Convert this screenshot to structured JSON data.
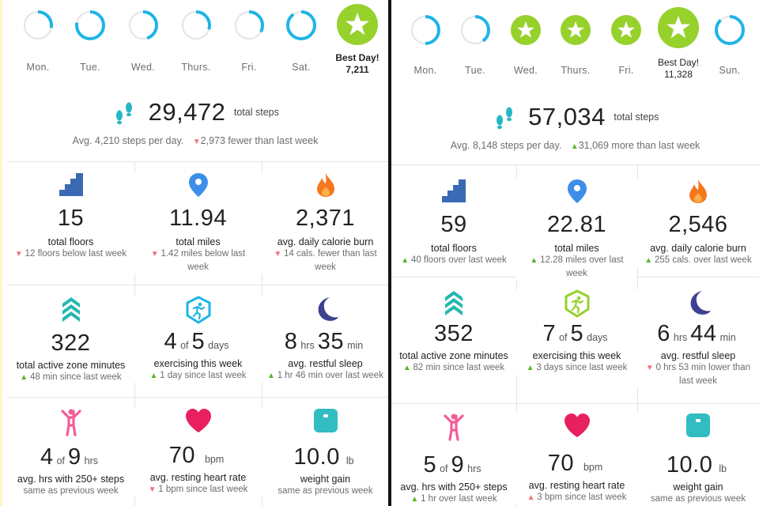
{
  "left": {
    "days": [
      {
        "label": "Mon.",
        "progress": 0.28
      },
      {
        "label": "Tue.",
        "progress": 0.78
      },
      {
        "label": "Wed.",
        "progress": 0.45
      },
      {
        "label": "Thurs.",
        "progress": 0.3
      },
      {
        "label": "Fri.",
        "progress": 0.33
      },
      {
        "label": "Sat.",
        "progress": 0.9
      }
    ],
    "best_day": {
      "label": "Best Day!",
      "steps": "7,211"
    },
    "total_steps": "29,472",
    "total_steps_unit": "total steps",
    "avg_steps": "Avg. 4,210 steps per day.",
    "steps_change": "2,973 fewer than last week",
    "steps_trend": "down",
    "tiles": [
      {
        "icon": "stairs-icon",
        "value": "15",
        "label": "total floors",
        "change": "12 floors below last week",
        "trend": "down"
      },
      {
        "icon": "location-pin-icon",
        "value": "11.94",
        "label": "total miles",
        "change": "1.42 miles below last week",
        "trend": "down"
      },
      {
        "icon": "flame-icon",
        "value": "2,371",
        "label": "avg. daily calorie burn",
        "change": "14 cals. fewer than last week",
        "trend": "down"
      },
      {
        "icon": "active-zone-icon",
        "value": "322",
        "label": "total active zone minutes",
        "change": "48 min since last week",
        "trend": "up"
      },
      {
        "icon": "exercise-badge-icon",
        "value_a": "4",
        "of": "of",
        "value_b": "5",
        "unit": "days",
        "label": "exercising this week",
        "change": "1 day since last week",
        "trend": "up"
      },
      {
        "icon": "moon-icon",
        "value_a": "8",
        "unit_a": "hrs",
        "value_b": "35",
        "unit_b": "min",
        "label": "avg. restful sleep",
        "change": "1 hr 46 min over last week",
        "trend": "up"
      },
      {
        "icon": "standing-person-icon",
        "value_a": "4",
        "of": "of",
        "value_b": "9",
        "unit": "hrs",
        "label": "avg. hrs with 250+ steps",
        "change": "same as previous week",
        "trend": "none"
      },
      {
        "icon": "heart-icon",
        "value": "70",
        "unit": "bpm",
        "label": "avg. resting heart rate",
        "change": "1 bpm since last week",
        "trend": "down"
      },
      {
        "icon": "scale-icon",
        "value": "10.0",
        "unit": "lb",
        "label": "weight gain",
        "change": "same as previous week",
        "trend": "none"
      }
    ]
  },
  "right": {
    "days": [
      {
        "label": "Mon.",
        "type": "ring",
        "progress": 0.5
      },
      {
        "label": "Tue.",
        "type": "ring",
        "progress": 0.4
      },
      {
        "label": "Wed.",
        "type": "star"
      },
      {
        "label": "Thurs.",
        "type": "star"
      },
      {
        "label": "Fri.",
        "type": "star"
      },
      {
        "label": "Sun.",
        "type": "ring",
        "progress": 0.88
      }
    ],
    "best_day": {
      "label": "Best Day!",
      "steps": "11,328"
    },
    "total_steps": "57,034",
    "total_steps_unit": "total steps",
    "avg_steps": "Avg. 8,148 steps per day.",
    "steps_change": "31,069 more than last week",
    "steps_trend": "up",
    "tiles": [
      {
        "icon": "stairs-icon",
        "value": "59",
        "label": "total floors",
        "change": "40 floors over last week",
        "trend": "up"
      },
      {
        "icon": "location-pin-icon",
        "value": "22.81",
        "label": "total miles",
        "change": "12.28 miles over last week",
        "trend": "up"
      },
      {
        "icon": "flame-icon",
        "value": "2,546",
        "label": "avg. daily calorie burn",
        "change": "255 cals. over last week",
        "trend": "up"
      },
      {
        "icon": "active-zone-icon",
        "value": "352",
        "label": "total active zone minutes",
        "change": "82 min since last week",
        "trend": "up"
      },
      {
        "icon": "exercise-badge-icon",
        "value_a": "7",
        "of": "of",
        "value_b": "5",
        "unit": "days",
        "label": "exercising this week",
        "change": "3 days since last week",
        "trend": "up"
      },
      {
        "icon": "moon-icon",
        "value_a": "6",
        "unit_a": "hrs",
        "value_b": "44",
        "unit_b": "min",
        "label": "avg. restful sleep",
        "change": "0 hrs 53 min lower than last week",
        "trend": "down"
      },
      {
        "icon": "standing-person-icon",
        "value_a": "5",
        "of": "of",
        "value_b": "9",
        "unit": "hrs",
        "label": "avg. hrs with 250+ steps",
        "change": "1 hr over last week",
        "trend": "up"
      },
      {
        "icon": "heart-icon",
        "value": "70",
        "unit": "bpm",
        "label": "avg. resting heart rate",
        "change": "3 bpm since last week",
        "trend": "down"
      },
      {
        "icon": "scale-icon",
        "value": "10.0",
        "unit": "lb",
        "label": "weight gain",
        "change": "same as previous week",
        "trend": "none"
      }
    ]
  },
  "colors": {
    "ring": "#1fb5e5",
    "ring_track": "#e3e3e3",
    "star_green": "#96d12c",
    "stairs": "#3a6ab3",
    "pin": "#3d8ee8",
    "flame": "#f5781f",
    "zone": "#22b8b0",
    "moon": "#3d4290",
    "pink": "#f25d99",
    "heart": "#e8205f",
    "scale": "#31bdc1",
    "steps": "#26b7c4",
    "down": "#f0707a",
    "up": "#5ab529"
  }
}
